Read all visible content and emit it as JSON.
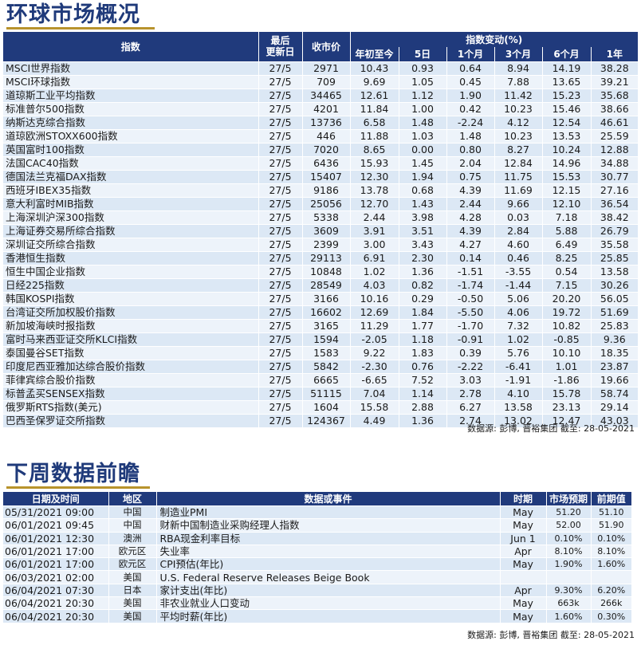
{
  "markets": {
    "title": "环球市场概况",
    "header": {
      "index": "指数",
      "last_update": "最后\n更新日",
      "close": "收市价",
      "change_group": "指数变动(%)",
      "periods": [
        "年初至今",
        "5日",
        "1个月",
        "3个月",
        "6个月",
        "1年"
      ]
    },
    "rows": [
      {
        "name": "MSCI世界指数",
        "date": "27/5",
        "close": "2971",
        "v": [
          "10.43",
          "0.93",
          "0.64",
          "8.94",
          "14.19",
          "38.28"
        ]
      },
      {
        "name": "MSCI环球指数",
        "date": "27/5",
        "close": "709",
        "v": [
          "9.69",
          "1.05",
          "0.45",
          "7.88",
          "13.65",
          "39.21"
        ]
      },
      {
        "name": "道琼斯工业平均指数",
        "date": "27/5",
        "close": "34465",
        "v": [
          "12.61",
          "1.12",
          "1.90",
          "11.42",
          "15.23",
          "35.68"
        ]
      },
      {
        "name": "标准普尔500指数",
        "date": "27/5",
        "close": "4201",
        "v": [
          "11.84",
          "1.00",
          "0.42",
          "10.23",
          "15.46",
          "38.66"
        ]
      },
      {
        "name": "纳斯达克综合指数",
        "date": "27/5",
        "close": "13736",
        "v": [
          "6.58",
          "1.48",
          "-2.24",
          "4.12",
          "12.54",
          "46.61"
        ]
      },
      {
        "name": "道琼欧洲STOXX600指数",
        "date": "27/5",
        "close": "446",
        "v": [
          "11.88",
          "1.03",
          "1.48",
          "10.23",
          "13.53",
          "25.59"
        ]
      },
      {
        "name": "英国富时100指数",
        "date": "27/5",
        "close": "7020",
        "v": [
          "8.65",
          "0.00",
          "0.80",
          "8.27",
          "10.24",
          "12.88"
        ]
      },
      {
        "name": "法国CAC40指数",
        "date": "27/5",
        "close": "6436",
        "v": [
          "15.93",
          "1.45",
          "2.04",
          "12.84",
          "14.96",
          "34.88"
        ]
      },
      {
        "name": "德国法兰克福DAX指数",
        "date": "27/5",
        "close": "15407",
        "v": [
          "12.30",
          "1.94",
          "0.75",
          "11.75",
          "15.53",
          "30.77"
        ]
      },
      {
        "name": "西班牙IBEX35指数",
        "date": "27/5",
        "close": "9186",
        "v": [
          "13.78",
          "0.68",
          "4.39",
          "11.69",
          "12.15",
          "27.16"
        ]
      },
      {
        "name": "意大利富时MIB指数",
        "date": "27/5",
        "close": "25056",
        "v": [
          "12.70",
          "1.43",
          "2.44",
          "9.66",
          "12.10",
          "36.54"
        ]
      },
      {
        "name": "上海深圳沪深300指数",
        "date": "27/5",
        "close": "5338",
        "v": [
          "2.44",
          "3.98",
          "4.28",
          "0.03",
          "7.18",
          "38.42"
        ]
      },
      {
        "name": "上海证券交易所综合指数",
        "date": "27/5",
        "close": "3609",
        "v": [
          "3.91",
          "3.51",
          "4.39",
          "2.84",
          "5.88",
          "26.79"
        ]
      },
      {
        "name": "深圳证交所综合指数",
        "date": "27/5",
        "close": "2399",
        "v": [
          "3.00",
          "3.43",
          "4.27",
          "4.60",
          "6.49",
          "35.58"
        ]
      },
      {
        "name": "香港恒生指数",
        "date": "27/5",
        "close": "29113",
        "v": [
          "6.91",
          "2.30",
          "0.14",
          "0.46",
          "8.25",
          "25.85"
        ]
      },
      {
        "name": "恒生中国企业指数",
        "date": "27/5",
        "close": "10848",
        "v": [
          "1.02",
          "1.36",
          "-1.51",
          "-3.55",
          "0.54",
          "13.58"
        ]
      },
      {
        "name": "日经225指数",
        "date": "27/5",
        "close": "28549",
        "v": [
          "4.03",
          "0.82",
          "-1.74",
          "-1.44",
          "7.15",
          "30.26"
        ]
      },
      {
        "name": "韩国KOSPI指数",
        "date": "27/5",
        "close": "3166",
        "v": [
          "10.16",
          "0.29",
          "-0.50",
          "5.06",
          "20.20",
          "56.05"
        ]
      },
      {
        "name": "台湾证交所加权股价指数",
        "date": "27/5",
        "close": "16602",
        "v": [
          "12.69",
          "1.84",
          "-5.50",
          "4.06",
          "19.72",
          "51.69"
        ]
      },
      {
        "name": "新加坡海峡时报指数",
        "date": "27/5",
        "close": "3165",
        "v": [
          "11.29",
          "1.77",
          "-1.70",
          "7.32",
          "10.82",
          "25.83"
        ]
      },
      {
        "name": "富时马来西亚证交所KLCI指数",
        "date": "27/5",
        "close": "1594",
        "v": [
          "-2.05",
          "1.18",
          "-0.91",
          "1.02",
          "-0.85",
          "9.36"
        ]
      },
      {
        "name": "泰国曼谷SET指数",
        "date": "27/5",
        "close": "1583",
        "v": [
          "9.22",
          "1.83",
          "0.39",
          "5.76",
          "10.10",
          "18.35"
        ]
      },
      {
        "name": "印度尼西亚雅加达综合股价指数",
        "date": "27/5",
        "close": "5842",
        "v": [
          "-2.30",
          "0.76",
          "-2.22",
          "-6.41",
          "1.01",
          "23.87"
        ]
      },
      {
        "name": "菲律宾综合股价指数",
        "date": "27/5",
        "close": "6665",
        "v": [
          "-6.65",
          "7.52",
          "3.03",
          "-1.91",
          "-1.86",
          "19.66"
        ]
      },
      {
        "name": "标普孟买SENSEX指数",
        "date": "27/5",
        "close": "51115",
        "v": [
          "7.04",
          "1.14",
          "2.78",
          "4.10",
          "15.78",
          "58.74"
        ]
      },
      {
        "name": "俄罗斯RTS指数(美元)",
        "date": "27/5",
        "close": "1604",
        "v": [
          "15.58",
          "2.88",
          "6.27",
          "13.58",
          "23.13",
          "29.14"
        ]
      },
      {
        "name": "巴西圣保罗证交所指数",
        "date": "27/5",
        "close": "124367",
        "v": [
          "4.49",
          "1.36",
          "2.74",
          "13.02",
          "12.47",
          "43.03"
        ]
      }
    ],
    "source": "数据源: 彭博, 晋裕集团 截至: 28-05-2021"
  },
  "calendar": {
    "title": "下周数据前瞻",
    "header": {
      "datetime": "日期及时间",
      "region": "地区",
      "event": "数据或事件",
      "period": "时期",
      "forecast": "市场预期",
      "previous": "前期值"
    },
    "rows": [
      {
        "dt": "05/31/2021 09:00",
        "region": "中国",
        "event": "制造业PMI",
        "period": "May",
        "forecast": "51.20",
        "prev": "51.10"
      },
      {
        "dt": "06/01/2021 09:45",
        "region": "中国",
        "event": "财新中国制造业采购经理人指数",
        "period": "May",
        "forecast": "52.00",
        "prev": "51.90"
      },
      {
        "dt": "06/01/2021 12:30",
        "region": "澳洲",
        "event": "RBA现金利率目标",
        "period": "Jun 1",
        "forecast": "0.10%",
        "prev": "0.10%"
      },
      {
        "dt": "06/01/2021 17:00",
        "region": "欧元区",
        "event": "失业率",
        "period": "Apr",
        "forecast": "8.10%",
        "prev": "8.10%"
      },
      {
        "dt": "06/01/2021 17:00",
        "region": "欧元区",
        "event": "CPI预估(年比)",
        "period": "May",
        "forecast": "1.90%",
        "prev": "1.60%"
      },
      {
        "dt": "06/03/2021 02:00",
        "region": "美国",
        "event": "U.S. Federal Reserve Releases Beige Book",
        "period": "",
        "forecast": "",
        "prev": ""
      },
      {
        "dt": "06/04/2021 07:30",
        "region": "日本",
        "event": "家计支出(年比)",
        "period": "Apr",
        "forecast": "9.30%",
        "prev": "6.20%"
      },
      {
        "dt": "06/04/2021 20:30",
        "region": "美国",
        "event": "非农业就业人口变动",
        "period": "May",
        "forecast": "663k",
        "prev": "266k"
      },
      {
        "dt": "06/04/2021 20:30",
        "region": "美国",
        "event": "平均时薪(年比)",
        "period": "May",
        "forecast": "1.60%",
        "prev": "0.30%"
      }
    ],
    "source": "数据源: 彭博, 晋裕集团 截至: 28-05-2021"
  }
}
